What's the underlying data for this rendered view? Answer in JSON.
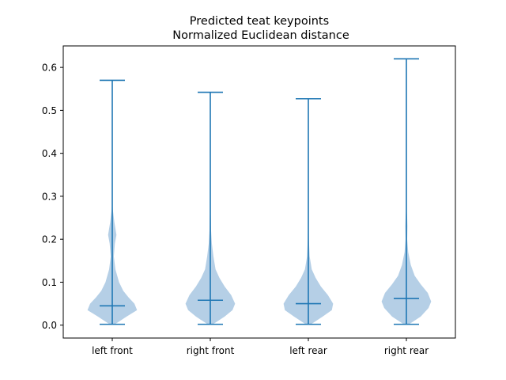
{
  "chart_data": {
    "type": "violin",
    "title": "Predicted teat keypoints",
    "subtitle": "Normalized Euclidean distance",
    "xlabel": "",
    "ylabel": "",
    "ylim": [
      -0.03,
      0.65
    ],
    "y_ticks": [
      "0.0",
      "0.1",
      "0.2",
      "0.3",
      "0.4",
      "0.5",
      "0.6"
    ],
    "categories": [
      "left front",
      "right front",
      "left rear",
      "right rear"
    ],
    "series": [
      {
        "min": 0.002,
        "median": 0.045,
        "max": 0.57,
        "density": [
          [
            0.002,
            0.1
          ],
          [
            0.02,
            0.55
          ],
          [
            0.035,
            0.95
          ],
          [
            0.05,
            0.85
          ],
          [
            0.065,
            0.62
          ],
          [
            0.08,
            0.42
          ],
          [
            0.1,
            0.26
          ],
          [
            0.13,
            0.12
          ],
          [
            0.16,
            0.06
          ],
          [
            0.19,
            0.1
          ],
          [
            0.21,
            0.16
          ],
          [
            0.24,
            0.08
          ],
          [
            0.27,
            0.02
          ],
          [
            0.3,
            0.0
          ],
          [
            0.57,
            0.0
          ]
        ]
      },
      {
        "min": 0.002,
        "median": 0.058,
        "max": 0.542,
        "density": [
          [
            0.002,
            0.1
          ],
          [
            0.02,
            0.55
          ],
          [
            0.035,
            0.85
          ],
          [
            0.05,
            0.95
          ],
          [
            0.07,
            0.8
          ],
          [
            0.09,
            0.55
          ],
          [
            0.11,
            0.35
          ],
          [
            0.13,
            0.2
          ],
          [
            0.16,
            0.12
          ],
          [
            0.19,
            0.06
          ],
          [
            0.22,
            0.03
          ],
          [
            0.25,
            0.02
          ],
          [
            0.29,
            0.0
          ],
          [
            0.542,
            0.0
          ]
        ]
      },
      {
        "min": 0.002,
        "median": 0.05,
        "max": 0.527,
        "density": [
          [
            0.002,
            0.1
          ],
          [
            0.02,
            0.55
          ],
          [
            0.035,
            0.9
          ],
          [
            0.05,
            0.95
          ],
          [
            0.07,
            0.75
          ],
          [
            0.09,
            0.48
          ],
          [
            0.11,
            0.28
          ],
          [
            0.13,
            0.13
          ],
          [
            0.16,
            0.05
          ],
          [
            0.2,
            0.02
          ],
          [
            0.24,
            0.01
          ],
          [
            0.27,
            0.0
          ],
          [
            0.527,
            0.0
          ]
        ]
      },
      {
        "min": 0.002,
        "median": 0.062,
        "max": 0.62,
        "density": [
          [
            0.002,
            0.1
          ],
          [
            0.02,
            0.55
          ],
          [
            0.04,
            0.85
          ],
          [
            0.055,
            0.95
          ],
          [
            0.075,
            0.82
          ],
          [
            0.095,
            0.55
          ],
          [
            0.115,
            0.32
          ],
          [
            0.14,
            0.17
          ],
          [
            0.17,
            0.07
          ],
          [
            0.2,
            0.03
          ],
          [
            0.23,
            0.04
          ],
          [
            0.25,
            0.03
          ],
          [
            0.28,
            0.0
          ],
          [
            0.62,
            0.0
          ]
        ]
      }
    ],
    "colors": {
      "line": "#1f77b4",
      "fill": "#b5cfe6"
    },
    "grid": false
  }
}
